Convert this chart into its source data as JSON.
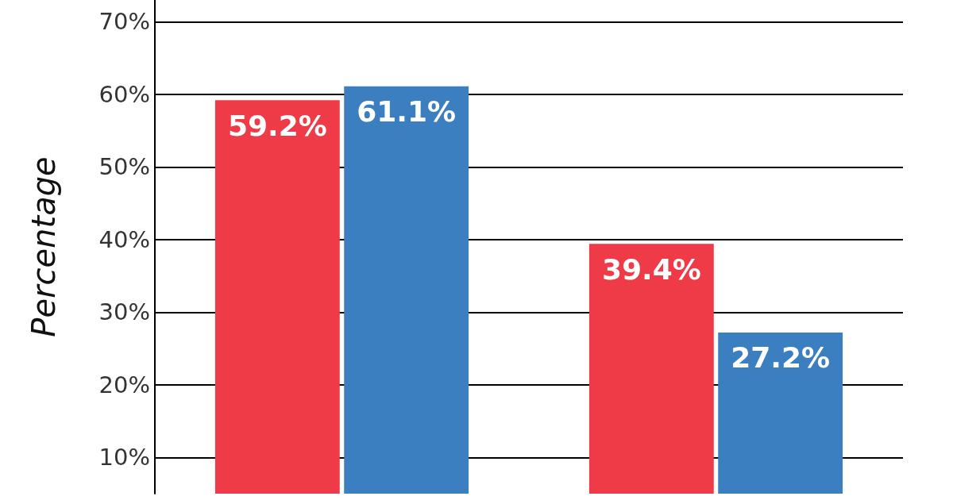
{
  "chart_data": {
    "type": "bar",
    "ylabel": "Percentage",
    "categories": [
      null,
      null
    ],
    "series": [
      {
        "color": "#ef3a47",
        "values": [
          59.2,
          39.4
        ],
        "value_labels": [
          "59.2%",
          "39.4%"
        ]
      },
      {
        "color": "#3b7fc1",
        "values": [
          61.1,
          27.2
        ],
        "value_labels": [
          "61.1%",
          "27.2%"
        ]
      }
    ],
    "ylim": [
      5,
      73
    ],
    "yticks": [
      {
        "value": 10,
        "label": "10%"
      },
      {
        "value": 20,
        "label": "20%"
      },
      {
        "value": 30,
        "label": "30%"
      },
      {
        "value": 40,
        "label": "40%"
      },
      {
        "value": 50,
        "label": "50%"
      },
      {
        "value": 60,
        "label": "60%"
      },
      {
        "value": 70,
        "label": "70%"
      }
    ],
    "grid": "y"
  }
}
